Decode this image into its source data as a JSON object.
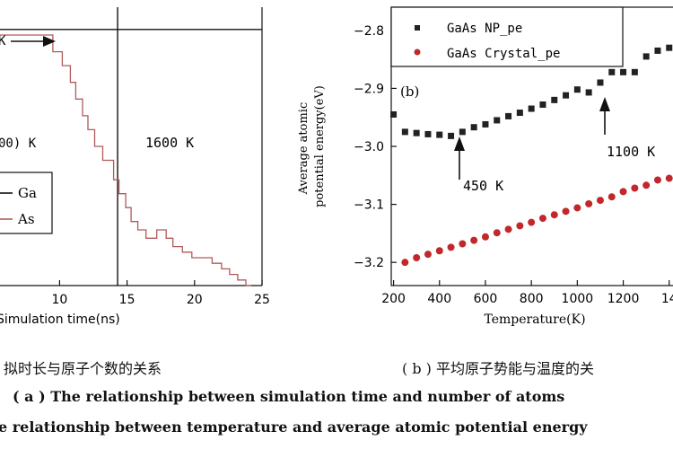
{
  "chart_data": [
    {
      "id": "a",
      "type": "line",
      "xlabel": "Simulation time(ns)",
      "ylabel": "",
      "xlim": [
        0,
        25
      ],
      "ylim": [
        0,
        100
      ],
      "x_ticks": [
        "10",
        "15",
        "20",
        "25"
      ],
      "annotations": [
        {
          "text": "00) K"
        },
        {
          "text": "1600 K"
        },
        {
          "text": "K"
        }
      ],
      "series": [
        {
          "name": "Ga",
          "color": "#111111",
          "x": [
            0,
            25
          ],
          "y": [
            92,
            92
          ]
        },
        {
          "name": "As",
          "color": "#b25a5a",
          "x": [
            0,
            9.5,
            9.5,
            10.2,
            10.2,
            10.8,
            10.8,
            11.2,
            11.2,
            11.7,
            11.7,
            12.1,
            12.1,
            12.6,
            12.6,
            13.2,
            13.2,
            14.0,
            14.0,
            14.4,
            14.4,
            14.9,
            14.9,
            15.3,
            15.3,
            15.8,
            15.8,
            16.4,
            16.4,
            17.2,
            17.2,
            17.9,
            17.9,
            18.4,
            18.4,
            19.1,
            19.1,
            19.8,
            19.8,
            20.6,
            20.6,
            21.3,
            21.3,
            22.0,
            22.0,
            22.6,
            22.6,
            23.2,
            23.2,
            23.8,
            23.8,
            24.2
          ],
          "y": [
            90,
            90,
            84,
            84,
            79,
            79,
            73,
            73,
            67,
            67,
            61,
            61,
            56,
            56,
            50,
            50,
            45,
            45,
            38,
            38,
            33,
            33,
            28,
            28,
            23,
            23,
            20,
            20,
            17,
            17,
            20,
            20,
            17,
            17,
            14,
            14,
            12,
            12,
            10,
            10,
            10,
            10,
            8,
            8,
            6,
            6,
            4,
            4,
            2,
            2,
            0,
            0
          ]
        }
      ],
      "vline_x": 14.3,
      "hline_y": 92
    },
    {
      "id": "b",
      "type": "scatter",
      "panel_label": "(b)",
      "xlabel": "Temperature(K)",
      "ylabel": "Average atomic potential energy(eV)",
      "xlim": [
        190,
        1440
      ],
      "ylim": [
        -3.24,
        -2.76
      ],
      "x_ticks": [
        "200",
        "400",
        "600",
        "800",
        "1000",
        "1200",
        "14"
      ],
      "y_ticks": [
        "-2.8",
        "-2.9",
        "-3.0",
        "-3.1",
        "-3.2"
      ],
      "legend_position": "top",
      "annotations": [
        {
          "text": "450 K",
          "x": 450,
          "y": -2.985
        },
        {
          "text": "1100 K",
          "x": 1100,
          "y": -2.915
        }
      ],
      "series": [
        {
          "name": "GaAs NP_pe",
          "color": "#222222",
          "marker": "square",
          "x": [
            200,
            250,
            300,
            350,
            400,
            450,
            500,
            550,
            600,
            650,
            700,
            750,
            800,
            850,
            900,
            950,
            1000,
            1050,
            1100,
            1150,
            1200,
            1250,
            1300,
            1350,
            1400
          ],
          "y": [
            -2.945,
            -2.975,
            -2.977,
            -2.979,
            -2.98,
            -2.982,
            -2.975,
            -2.967,
            -2.962,
            -2.955,
            -2.948,
            -2.942,
            -2.935,
            -2.928,
            -2.92,
            -2.912,
            -2.902,
            -2.907,
            -2.89,
            -2.872,
            -2.872,
            -2.872,
            -2.845,
            -2.835,
            -2.83
          ]
        },
        {
          "name": "GaAs Crystal_pe",
          "color": "#c0282b",
          "marker": "circle",
          "x": [
            250,
            300,
            350,
            400,
            450,
            500,
            550,
            600,
            650,
            700,
            750,
            800,
            850,
            900,
            950,
            1000,
            1050,
            1100,
            1150,
            1200,
            1250,
            1300,
            1350,
            1400
          ],
          "y": [
            -3.2,
            -3.192,
            -3.186,
            -3.18,
            -3.174,
            -3.168,
            -3.162,
            -3.156,
            -3.149,
            -3.143,
            -3.137,
            -3.131,
            -3.124,
            -3.118,
            -3.112,
            -3.106,
            -3.099,
            -3.093,
            -3.087,
            -3.078,
            -3.072,
            -3.067,
            -3.058,
            -3.055
          ]
        }
      ]
    }
  ],
  "captions": {
    "left_sub": "拟时长与原子个数的关系",
    "right_sub": "( b ) 平均原子势能与温度的关",
    "line_a": "( a ) The relationship between simulation time and number of atoms",
    "line_b": "e relationship between temperature and average atomic potential energy"
  },
  "colors": {
    "background": "#ffffff",
    "axis": "#111111",
    "ga_line": "#111111",
    "as_line": "#b25a5a",
    "np_markers": "#222222",
    "crystal_markers": "#c0282b"
  }
}
